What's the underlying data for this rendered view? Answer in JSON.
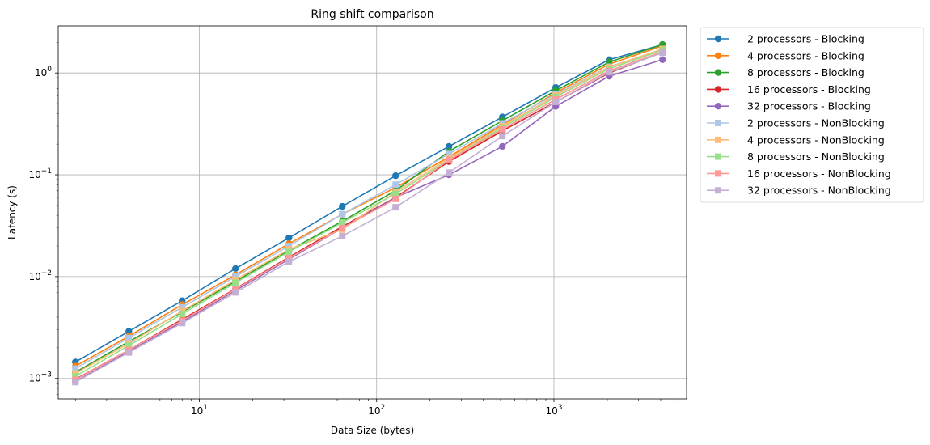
{
  "chart_data": {
    "type": "line",
    "title": "Ring shift comparison",
    "xlabel": "Data Size (bytes)",
    "ylabel": "Latency (s)",
    "xscale": "log",
    "yscale": "log",
    "xlim": [
      1.6,
      5600
    ],
    "ylim": [
      0.00063,
      2.9
    ],
    "grid": true,
    "legend_position": "outside-top-right",
    "x_major_ticks": [
      {
        "value": 10,
        "base": "10",
        "exp": "1"
      },
      {
        "value": 100,
        "base": "10",
        "exp": "2"
      },
      {
        "value": 1000,
        "base": "10",
        "exp": "3"
      }
    ],
    "y_major_ticks": [
      {
        "value": 0.001,
        "base": "10",
        "exp": "−3"
      },
      {
        "value": 0.01,
        "base": "10",
        "exp": "−2"
      },
      {
        "value": 0.1,
        "base": "10",
        "exp": "−1"
      },
      {
        "value": 1,
        "base": "10",
        "exp": "0"
      }
    ],
    "x": [
      2,
      4,
      8,
      16,
      32,
      64,
      128,
      256,
      512,
      1024,
      2048,
      4096
    ],
    "series": [
      {
        "name": "2 processors - Blocking",
        "color": "#1f77b4",
        "marker": "circle",
        "values": [
          0.00145,
          0.0029,
          0.0058,
          0.012,
          0.024,
          0.049,
          0.098,
          0.19,
          0.37,
          0.72,
          1.35,
          1.9
        ]
      },
      {
        "name": "4 processors - Blocking",
        "color": "#ff7f0e",
        "marker": "circle",
        "values": [
          0.00132,
          0.0026,
          0.0053,
          0.0104,
          0.021,
          0.041,
          0.075,
          0.15,
          0.31,
          0.64,
          1.22,
          1.85
        ]
      },
      {
        "name": "8 processors - Blocking",
        "color": "#2ca02c",
        "marker": "circle",
        "values": [
          0.00115,
          0.0023,
          0.0045,
          0.009,
          0.018,
          0.035,
          0.07,
          0.17,
          0.34,
          0.67,
          1.28,
          1.9
        ]
      },
      {
        "name": "16 processors - Blocking",
        "color": "#d62728",
        "marker": "circle",
        "values": [
          0.00098,
          0.0019,
          0.0038,
          0.0076,
          0.0155,
          0.031,
          0.06,
          0.135,
          0.27,
          0.52,
          1.0,
          1.6
        ]
      },
      {
        "name": "32 processors - Blocking",
        "color": "#9467bd",
        "marker": "circle",
        "values": [
          0.00093,
          0.00185,
          0.0036,
          0.0073,
          0.0148,
          0.03,
          0.06,
          0.1,
          0.19,
          0.47,
          0.93,
          1.35
        ]
      },
      {
        "name": "2 processors - NonBlocking",
        "color": "#aec7e8",
        "marker": "square",
        "values": [
          0.00125,
          0.0025,
          0.005,
          0.01,
          0.02,
          0.041,
          0.08,
          0.16,
          0.32,
          0.62,
          1.15,
          1.7
        ]
      },
      {
        "name": "4 processors - NonBlocking",
        "color": "#ffbb78",
        "marker": "square",
        "values": [
          0.00112,
          0.0022,
          0.0046,
          0.0093,
          0.0185,
          0.029,
          0.068,
          0.145,
          0.3,
          0.6,
          1.14,
          1.72
        ]
      },
      {
        "name": "8 processors - NonBlocking",
        "color": "#98df8a",
        "marker": "square",
        "values": [
          0.00105,
          0.0021,
          0.0043,
          0.0087,
          0.0175,
          0.034,
          0.065,
          0.14,
          0.29,
          0.58,
          1.1,
          1.68
        ]
      },
      {
        "name": "16 processors - NonBlocking",
        "color": "#ff9896",
        "marker": "square",
        "values": [
          0.00097,
          0.0019,
          0.0037,
          0.0075,
          0.0152,
          0.03,
          0.058,
          0.14,
          0.28,
          0.55,
          1.05,
          1.62
        ]
      },
      {
        "name": "32 processors - NonBlocking",
        "color": "#c5b0d5",
        "marker": "square",
        "values": [
          0.00092,
          0.0018,
          0.0035,
          0.007,
          0.014,
          0.025,
          0.048,
          0.105,
          0.24,
          0.52,
          1.02,
          1.58
        ]
      }
    ]
  }
}
